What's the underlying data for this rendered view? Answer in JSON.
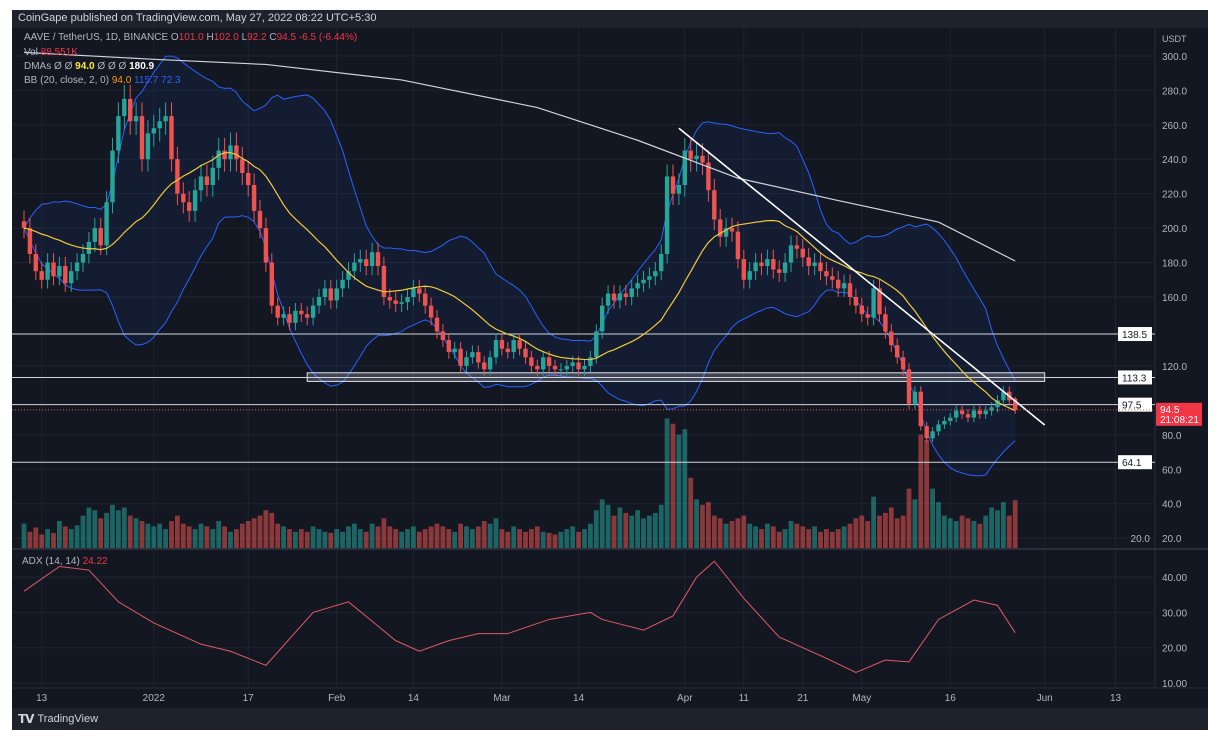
{
  "header": {
    "published": "CoinGape published on TradingView.com, May 27, 2022 08:22 UTC+5:30"
  },
  "legend": {
    "symbol": "AAVE / TetherUS, 1D, BINANCE",
    "o_label": "O",
    "o": "101.0",
    "h_label": "H",
    "h": "102.0",
    "l_label": "L",
    "l": "92.2",
    "c_label": "C",
    "c": "94.5",
    "change": "-6.5 (-6.44%)",
    "vol_label": "Vol",
    "vol": "88.551K",
    "dmas_label": "DMAs",
    "dmas_empty": "Ø Ø",
    "dma20": "94.0",
    "dmas_empty2": "Ø Ø Ø",
    "dma200": "180.9",
    "bb_label": "BB (20, close, 2, 0)",
    "bb_basis": "94.0",
    "bb_upper": "115.7",
    "bb_lower": "72.3"
  },
  "adx_legend": {
    "label": "ADX (14, 14)",
    "value": "24.22"
  },
  "footer": {
    "brand": "TradingView"
  },
  "colors": {
    "up": "#26a69a",
    "down": "#ef5350",
    "sma20": "#f0c93a",
    "dma200": "#d1d4dc",
    "bb": "#2962ff",
    "adx": "#e05a63",
    "bg": "#131722"
  },
  "chart_data": {
    "type": "candlestick",
    "start_date": "2021-12-10",
    "end_date": "2022-05-27",
    "price_axis": {
      "unit": "USDT",
      "ticks": [
        "300.0",
        "280.0",
        "260.0",
        "240.0",
        "220.0",
        "200.0",
        "180.0",
        "160.0",
        "120.0",
        "80.0",
        "60.0",
        "40.0",
        "20.0"
      ],
      "range": [
        12,
        312
      ]
    },
    "time_axis": {
      "ticks": [
        [
          "2021-12-13",
          "13"
        ],
        [
          "2022-01-01",
          "2022"
        ],
        [
          "2022-01-17",
          "17"
        ],
        [
          "2022-02-01",
          "Feb"
        ],
        [
          "2022-02-14",
          "14"
        ],
        [
          "2022-03-01",
          "Mar"
        ],
        [
          "2022-03-14",
          "14"
        ],
        [
          "2022-04-01",
          "Apr"
        ],
        [
          "2022-04-11",
          "11"
        ],
        [
          "2022-04-21",
          "21"
        ],
        [
          "2022-05-01",
          "May"
        ],
        [
          "2022-05-16",
          "16"
        ],
        [
          "2022-06-01",
          "Jun"
        ],
        [
          "2022-06-13",
          "13"
        ]
      ]
    },
    "closes": [
      200,
      185,
      175,
      170,
      180,
      172,
      178,
      168,
      175,
      180,
      185,
      192,
      200,
      190,
      215,
      245,
      265,
      275,
      262,
      265,
      240,
      255,
      258,
      262,
      265,
      240,
      220,
      215,
      210,
      222,
      230,
      225,
      235,
      245,
      240,
      248,
      240,
      232,
      225,
      210,
      200,
      180,
      155,
      148,
      150,
      145,
      152,
      150,
      148,
      155,
      160,
      165,
      158,
      165,
      170,
      175,
      180,
      182,
      178,
      186,
      178,
      160,
      158,
      156,
      157,
      160,
      165,
      162,
      155,
      148,
      140,
      135,
      128,
      130,
      120,
      125,
      128,
      122,
      118,
      125,
      135,
      130,
      128,
      135,
      130,
      125,
      120,
      118,
      125,
      120,
      118,
      118,
      120,
      122,
      118,
      120,
      125,
      140,
      155,
      162,
      158,
      162,
      160,
      165,
      168,
      170,
      172,
      175,
      185,
      230,
      220,
      225,
      245,
      240,
      242,
      238,
      222,
      205,
      195,
      200,
      198,
      182,
      170,
      175,
      180,
      178,
      182,
      176,
      174,
      180,
      190,
      188,
      183,
      178,
      180,
      175,
      172,
      170,
      165,
      168,
      160,
      155,
      150,
      148,
      165,
      150,
      140,
      132,
      125,
      118,
      98,
      105,
      85,
      78,
      82,
      86,
      88,
      90,
      94,
      92,
      90,
      94,
      92,
      94,
      96,
      100,
      105,
      100,
      94.5
    ],
    "open_last": 101.0,
    "high_last": 102.0,
    "low_last": 92.2,
    "volume_k": [
      45,
      30,
      38,
      25,
      35,
      28,
      50,
      40,
      35,
      42,
      60,
      75,
      70,
      55,
      65,
      80,
      70,
      75,
      60,
      55,
      50,
      45,
      40,
      45,
      35,
      50,
      60,
      45,
      40,
      35,
      45,
      40,
      35,
      50,
      40,
      30,
      35,
      45,
      50,
      55,
      60,
      70,
      65,
      45,
      40,
      35,
      30,
      35,
      30,
      40,
      35,
      30,
      28,
      35,
      30,
      40,
      45,
      35,
      30,
      45,
      40,
      55,
      40,
      35,
      30,
      35,
      40,
      30,
      35,
      40,
      45,
      40,
      35,
      30,
      45,
      40,
      35,
      40,
      50,
      45,
      55,
      35,
      30,
      40,
      35,
      30,
      35,
      40,
      30,
      28,
      25,
      30,
      35,
      40,
      30,
      35,
      45,
      70,
      90,
      80,
      60,
      75,
      65,
      60,
      70,
      55,
      60,
      65,
      80,
      240,
      230,
      210,
      220,
      130,
      90,
      80,
      85,
      60,
      55,
      45,
      50,
      55,
      60,
      45,
      40,
      35,
      45,
      40,
      30,
      35,
      50,
      45,
      40,
      35,
      40,
      30,
      35,
      30,
      35,
      40,
      45,
      55,
      60,
      50,
      95,
      60,
      65,
      75,
      55,
      60,
      110,
      90,
      210,
      200,
      110,
      85,
      60,
      55,
      50,
      60,
      55,
      50,
      45,
      60,
      75,
      70,
      85,
      60,
      88.551
    ],
    "volume_tick": "20.0",
    "dma200": [
      [
        "2021-12-10",
        302
      ],
      [
        "2022-01-01",
        298
      ],
      [
        "2022-01-20",
        295
      ],
      [
        "2022-02-12",
        286
      ],
      [
        "2022-03-07",
        270
      ],
      [
        "2022-03-24",
        251
      ],
      [
        "2022-04-10",
        229
      ],
      [
        "2022-04-27",
        216
      ],
      [
        "2022-05-14",
        203.5
      ],
      [
        "2022-05-27",
        180.9
      ]
    ],
    "sma_period": 20,
    "bb_stdev": 2,
    "levels": [
      138.5,
      113.3,
      97.5,
      64.1
    ],
    "zone": {
      "from": "2022-01-27",
      "to": "2022-06-01",
      "low": 111,
      "high": 116
    },
    "trendline": [
      [
        "2022-03-31",
        258
      ],
      [
        "2022-06-01",
        85.7
      ]
    ],
    "last_price": "94.5",
    "countdown": "21:08:21",
    "adx": {
      "ticks": [
        "40.00",
        "30.00",
        "20.00",
        "10.00"
      ],
      "range": [
        8.5,
        47
      ],
      "points": [
        [
          "2021-12-10",
          36
        ],
        [
          "2021-12-16",
          43
        ],
        [
          "2021-12-21",
          42
        ],
        [
          "2021-12-26",
          33
        ],
        [
          "2022-01-01",
          27
        ],
        [
          "2022-01-09",
          21
        ],
        [
          "2022-01-14",
          19
        ],
        [
          "2022-01-20",
          15
        ],
        [
          "2022-01-28",
          30
        ],
        [
          "2022-02-03",
          33
        ],
        [
          "2022-02-11",
          22
        ],
        [
          "2022-02-15",
          19
        ],
        [
          "2022-02-20",
          22
        ],
        [
          "2022-02-25",
          24
        ],
        [
          "2022-03-02",
          24
        ],
        [
          "2022-03-09",
          28
        ],
        [
          "2022-03-16",
          30
        ],
        [
          "2022-03-18",
          28
        ],
        [
          "2022-03-25",
          25
        ],
        [
          "2022-03-30",
          29
        ],
        [
          "2022-04-03",
          40
        ],
        [
          "2022-04-06",
          44.5
        ],
        [
          "2022-04-11",
          34
        ],
        [
          "2022-04-17",
          23
        ],
        [
          "2022-04-25",
          17
        ],
        [
          "2022-04-30",
          13
        ],
        [
          "2022-05-05",
          16.5
        ],
        [
          "2022-05-09",
          16
        ],
        [
          "2022-05-14",
          28
        ],
        [
          "2022-05-20",
          33.5
        ],
        [
          "2022-05-24",
          32
        ],
        [
          "2022-05-27",
          24.22
        ]
      ]
    }
  }
}
